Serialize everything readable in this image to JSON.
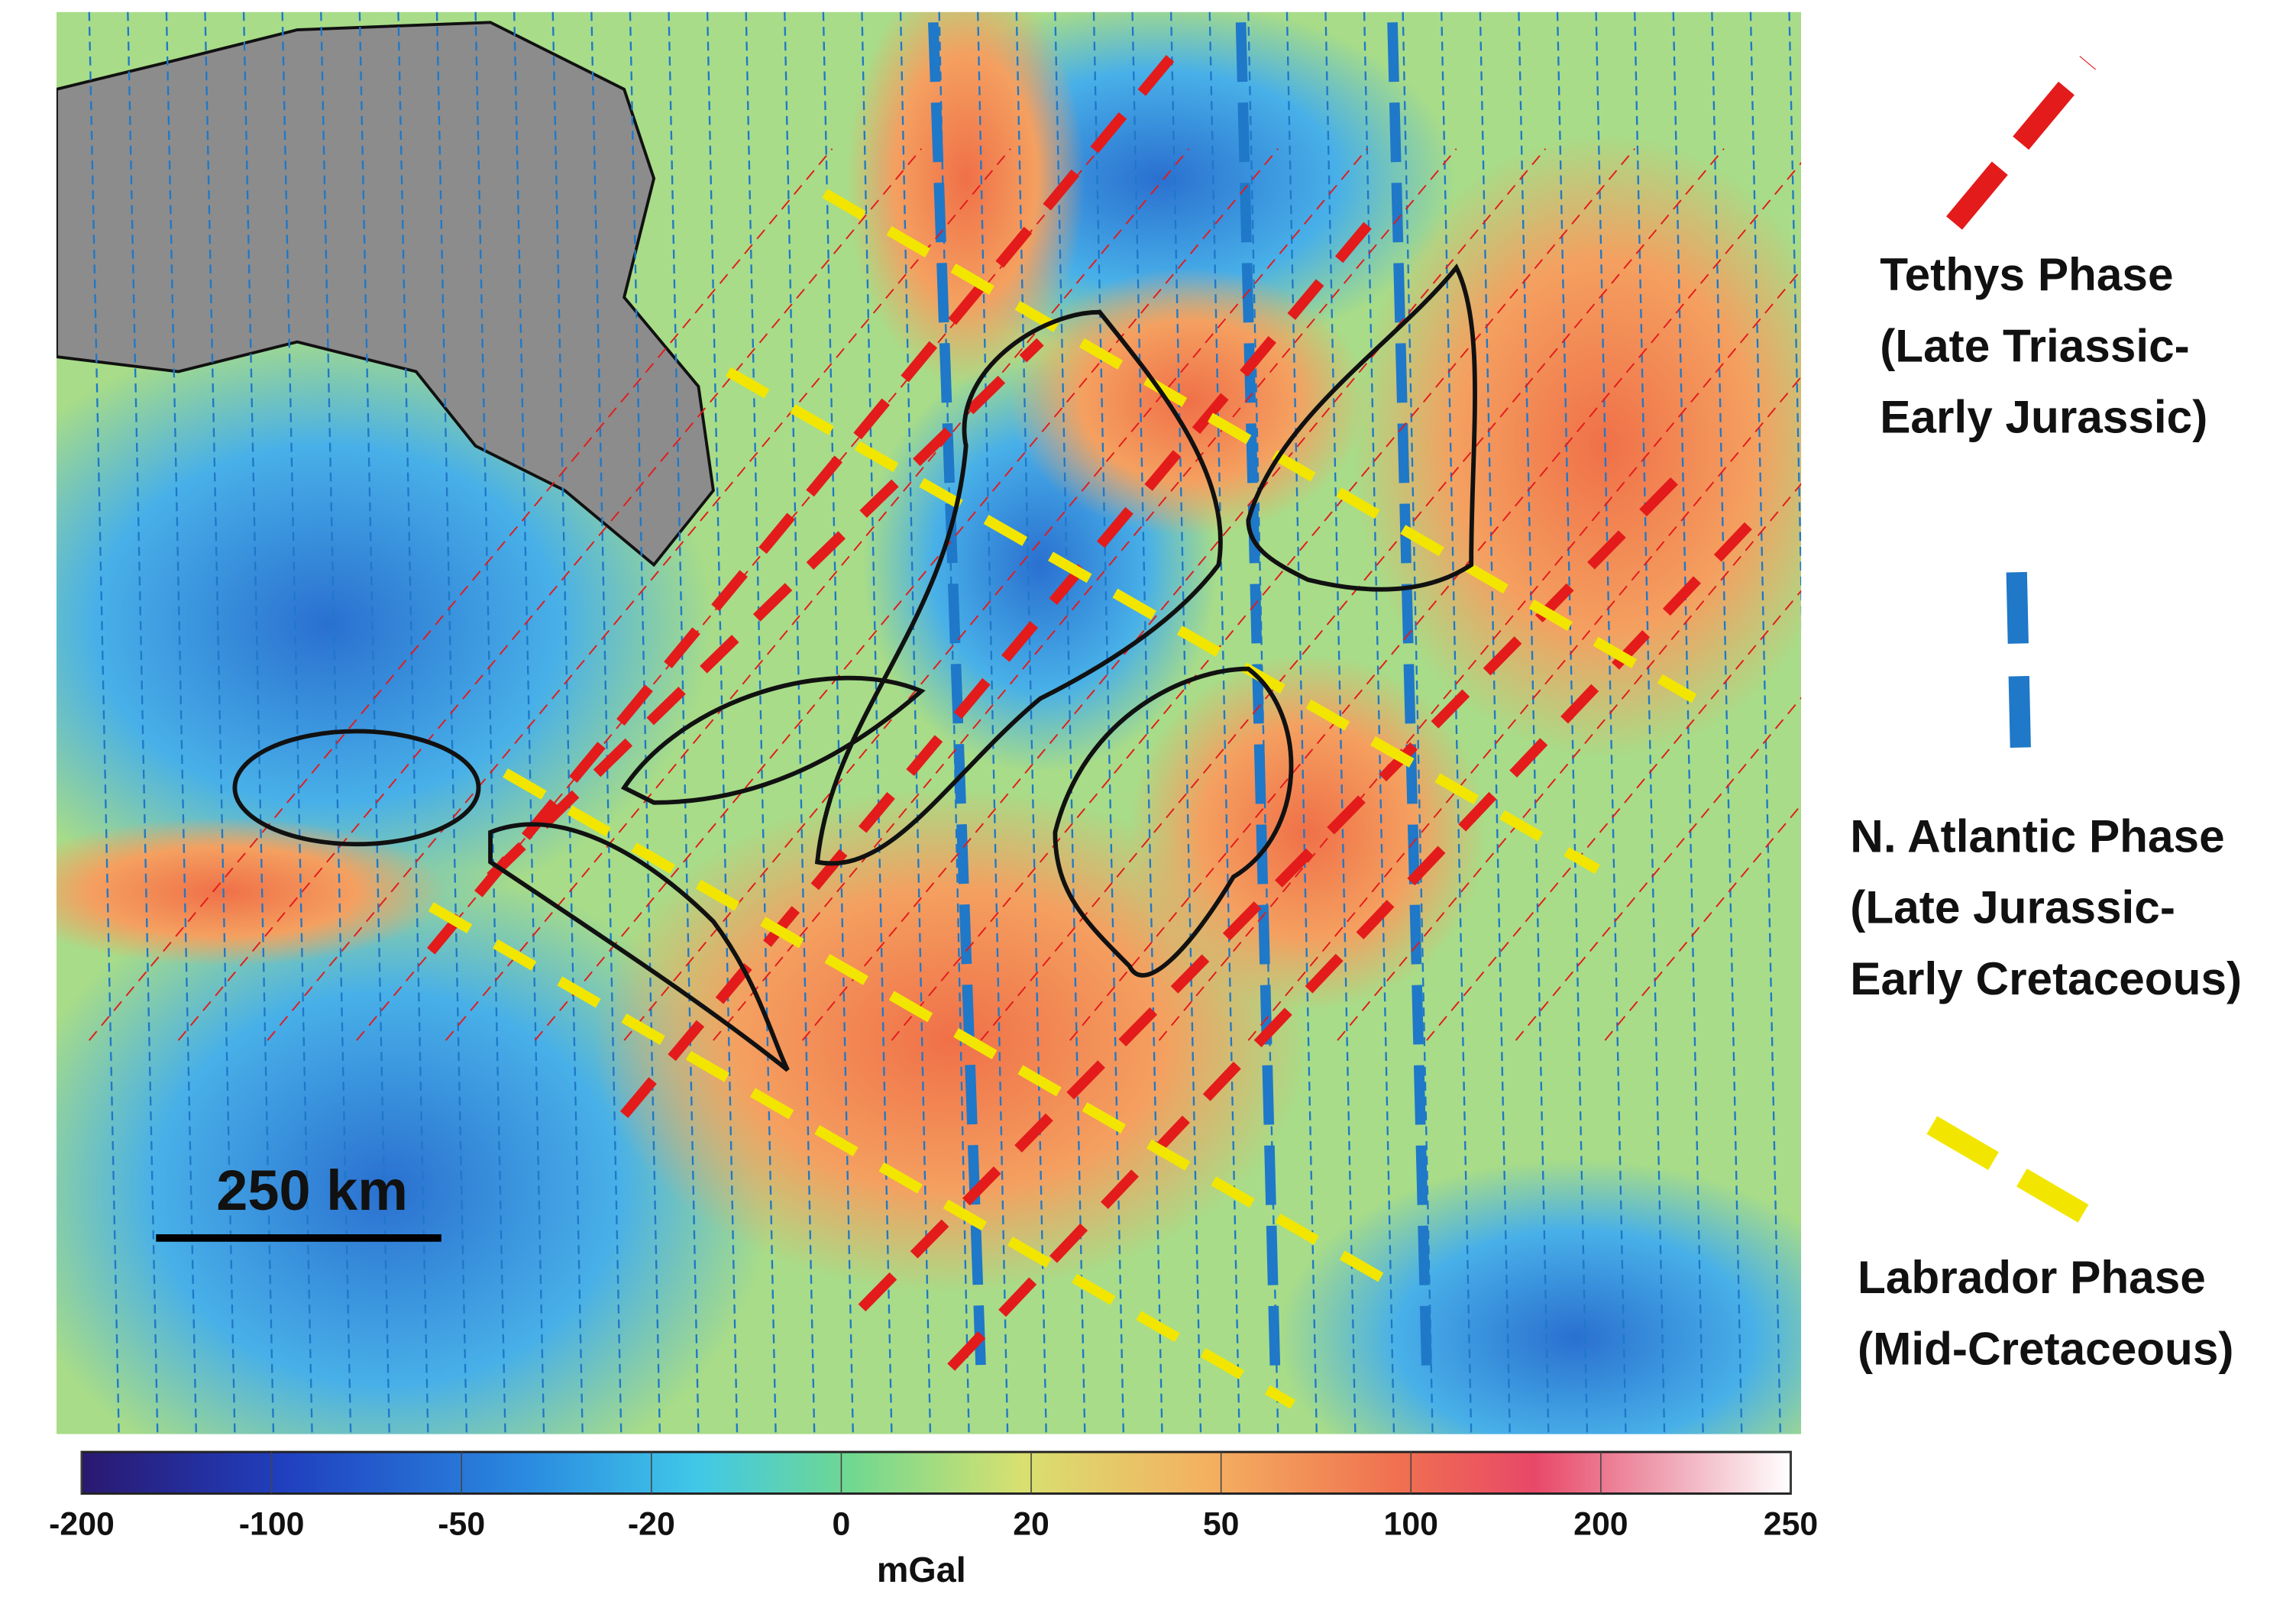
{
  "map": {
    "scale_bar": "250 km",
    "colorbar": {
      "ticks": [
        -200,
        -100,
        -50,
        -20,
        0,
        20,
        50,
        100,
        200,
        250
      ],
      "unit": "mGal"
    },
    "legend": [
      {
        "lines": [
          "Tethys Phase",
          "(Late Triassic-",
          "Early Jurassic)"
        ],
        "color": "#e31b1b"
      },
      {
        "lines": [
          "N. Atlantic Phase",
          "(Late Jurassic-",
          "Early Cretaceous)"
        ],
        "color": "#1f78c8"
      },
      {
        "lines": [
          "Labrador Phase",
          "(Mid-Cretaceous)"
        ],
        "color": "#f2e600"
      }
    ]
  }
}
